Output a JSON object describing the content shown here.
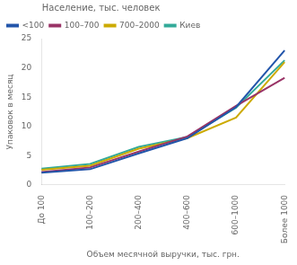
{
  "chart_data": {
    "type": "line",
    "xlabel": "Объем месячной выручки, тыс. грн.",
    "ylabel": "Упаковок в месяц",
    "categories": [
      "До 100",
      "100–200",
      "200–400",
      "400–600",
      "600–1000",
      "Более 1000"
    ],
    "series": [
      {
        "name": "<100",
        "color": "#2255aa",
        "values": [
          2.1,
          2.7,
          5.4,
          8.0,
          13.3,
          23.0
        ]
      },
      {
        "name": "100–700",
        "color": "#993366",
        "values": [
          2.2,
          3.0,
          5.7,
          8.3,
          13.5,
          18.3
        ]
      },
      {
        "name": "700–2000",
        "color": "#ccaa00",
        "values": [
          2.6,
          3.3,
          6.2,
          8.0,
          11.5,
          21.0
        ]
      },
      {
        "name": "Киев",
        "color": "#33aa99",
        "values": [
          2.8,
          3.6,
          6.5,
          8.2,
          13.2,
          21.3
        ]
      }
    ],
    "legend_title": "Население, тыс. человек",
    "ylim": [
      0,
      25
    ],
    "yticks": [
      0,
      5,
      10,
      15,
      20,
      25
    ],
    "grid": false,
    "legend": "upper left"
  }
}
